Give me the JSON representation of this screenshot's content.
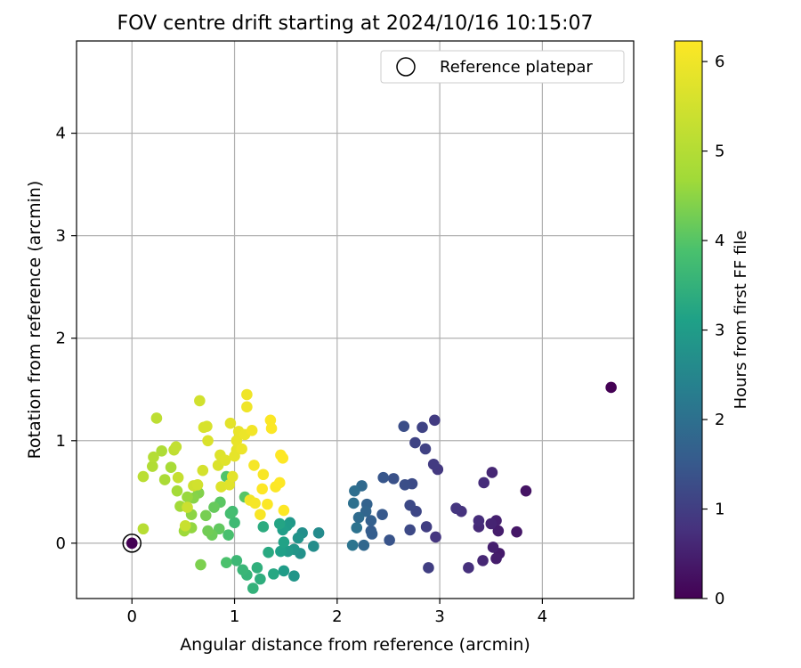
{
  "chart_data": {
    "type": "scatter",
    "title": "FOV centre drift starting at 2024/10/16 10:15:07",
    "xlabel": "Angular distance from reference (arcmin)",
    "ylabel": "Rotation from reference (arcmin)",
    "xlim": [
      -0.54,
      4.89
    ],
    "ylim": [
      -0.54,
      4.9
    ],
    "xticks": [
      "0",
      "1",
      "2",
      "3",
      "4"
    ],
    "yticks": [
      "0",
      "1",
      "2",
      "3",
      "4"
    ],
    "grid": true,
    "legend": {
      "position": "top-right",
      "label": "Reference platepar"
    },
    "reference_point": {
      "x": 0,
      "y": 0
    },
    "colorbar": {
      "label": "Hours from first FF file",
      "colormap": "viridis",
      "range": [
        0,
        6.23
      ],
      "ticks": [
        "0",
        "1",
        "2",
        "3",
        "4",
        "5",
        "6"
      ]
    },
    "points": [
      [
        4.67,
        1.52,
        0.0
      ],
      [
        3.84,
        0.51,
        0.3
      ],
      [
        3.75,
        0.11,
        0.35
      ],
      [
        3.58,
        -0.1,
        0.4
      ],
      [
        3.55,
        -0.15,
        0.45
      ],
      [
        3.57,
        0.12,
        0.45
      ],
      [
        3.52,
        -0.04,
        0.5
      ],
      [
        3.55,
        0.22,
        0.5
      ],
      [
        3.5,
        0.19,
        0.55
      ],
      [
        3.51,
        0.69,
        0.6
      ],
      [
        3.42,
        -0.17,
        0.6
      ],
      [
        3.38,
        0.16,
        0.65
      ],
      [
        3.38,
        0.22,
        0.7
      ],
      [
        3.43,
        0.59,
        0.7
      ],
      [
        3.28,
        -0.24,
        0.75
      ],
      [
        3.21,
        0.31,
        0.8
      ],
      [
        3.16,
        0.34,
        0.85
      ],
      [
        2.96,
        0.06,
        0.85
      ],
      [
        2.98,
        0.72,
        0.9
      ],
      [
        2.94,
        0.77,
        0.95
      ],
      [
        2.95,
        1.2,
        0.95
      ],
      [
        2.87,
        0.16,
        1.0
      ],
      [
        2.89,
        -0.24,
        1.0
      ],
      [
        2.86,
        0.92,
        1.05
      ],
      [
        2.83,
        1.13,
        1.1
      ],
      [
        2.76,
        0.98,
        1.1
      ],
      [
        2.77,
        0.31,
        1.15
      ],
      [
        2.71,
        0.37,
        1.2
      ],
      [
        2.71,
        0.13,
        1.2
      ],
      [
        2.73,
        0.58,
        1.25
      ],
      [
        2.66,
        0.57,
        1.3
      ],
      [
        2.65,
        1.14,
        1.3
      ],
      [
        2.55,
        0.63,
        1.35
      ],
      [
        2.51,
        0.03,
        1.4
      ],
      [
        2.45,
        0.64,
        1.45
      ],
      [
        2.44,
        0.28,
        1.5
      ],
      [
        2.33,
        0.12,
        1.55
      ],
      [
        2.34,
        0.09,
        1.6
      ],
      [
        2.33,
        0.22,
        1.65
      ],
      [
        2.29,
        0.38,
        1.7
      ],
      [
        2.28,
        0.31,
        1.75
      ],
      [
        2.26,
        -0.02,
        1.8
      ],
      [
        2.24,
        0.56,
        1.85
      ],
      [
        2.21,
        0.25,
        1.9
      ],
      [
        2.17,
        0.51,
        1.95
      ],
      [
        2.16,
        0.39,
        2.0
      ],
      [
        2.19,
        0.15,
        2.05
      ],
      [
        2.15,
        -0.02,
        2.1
      ],
      [
        1.82,
        0.1,
        2.6
      ],
      [
        1.77,
        -0.03,
        2.65
      ],
      [
        1.66,
        0.1,
        2.7
      ],
      [
        1.64,
        -0.1,
        2.75
      ],
      [
        1.62,
        0.05,
        2.8
      ],
      [
        1.58,
        -0.32,
        2.85
      ],
      [
        1.58,
        -0.06,
        2.85
      ],
      [
        1.54,
        0.2,
        2.9
      ],
      [
        1.52,
        -0.08,
        2.95
      ],
      [
        1.51,
        0.17,
        3.0
      ],
      [
        1.48,
        -0.27,
        3.0
      ],
      [
        1.47,
        0.13,
        3.05
      ],
      [
        1.45,
        -0.08,
        3.1
      ],
      [
        1.48,
        0.01,
        3.15
      ],
      [
        1.44,
        0.19,
        3.2
      ],
      [
        1.38,
        -0.3,
        3.25
      ],
      [
        1.33,
        -0.09,
        3.3
      ],
      [
        1.28,
        0.16,
        3.35
      ],
      [
        1.25,
        -0.35,
        3.4
      ],
      [
        1.22,
        -0.24,
        3.45
      ],
      [
        1.18,
        -0.44,
        3.5
      ],
      [
        1.12,
        -0.31,
        3.55
      ],
      [
        1.08,
        -0.26,
        3.6
      ],
      [
        1.02,
        -0.17,
        3.65
      ],
      [
        1.0,
        0.2,
        3.7
      ],
      [
        0.98,
        0.31,
        3.75
      ],
      [
        0.96,
        0.29,
        3.8
      ],
      [
        0.94,
        0.08,
        3.85
      ],
      [
        0.92,
        -0.19,
        3.9
      ],
      [
        0.92,
        0.65,
        3.95
      ],
      [
        1.1,
        0.45,
        4.0
      ],
      [
        0.86,
        0.4,
        4.05
      ],
      [
        0.85,
        0.14,
        4.1
      ],
      [
        0.8,
        0.35,
        4.15
      ],
      [
        0.78,
        0.08,
        4.2
      ],
      [
        0.74,
        0.12,
        4.25
      ],
      [
        0.72,
        0.27,
        4.3
      ],
      [
        0.67,
        -0.21,
        4.35
      ],
      [
        0.65,
        0.49,
        4.4
      ],
      [
        0.6,
        0.44,
        4.45
      ],
      [
        0.58,
        0.28,
        4.5
      ],
      [
        0.58,
        0.15,
        4.55
      ],
      [
        0.54,
        0.45,
        4.6
      ],
      [
        0.51,
        0.12,
        4.65
      ],
      [
        0.47,
        0.36,
        4.7
      ],
      [
        0.44,
        0.51,
        4.75
      ],
      [
        0.38,
        0.74,
        4.8
      ],
      [
        0.32,
        0.62,
        4.85
      ],
      [
        0.29,
        0.9,
        4.9
      ],
      [
        0.2,
        0.75,
        4.95
      ],
      [
        0.21,
        0.84,
        5.0
      ],
      [
        0.11,
        0.14,
        5.05
      ],
      [
        0.11,
        0.65,
        5.1
      ],
      [
        0.24,
        1.22,
        5.15
      ],
      [
        0.41,
        0.91,
        5.2
      ],
      [
        0.43,
        0.94,
        5.25
      ],
      [
        0.45,
        0.64,
        5.3
      ],
      [
        0.52,
        0.17,
        5.35
      ],
      [
        0.54,
        0.35,
        5.4
      ],
      [
        0.6,
        0.56,
        5.45
      ],
      [
        0.64,
        0.57,
        5.5
      ],
      [
        0.66,
        1.39,
        5.5
      ],
      [
        0.69,
        0.71,
        5.55
      ],
      [
        0.7,
        1.13,
        5.6
      ],
      [
        0.73,
        1.14,
        5.6
      ],
      [
        0.74,
        1.0,
        5.65
      ],
      [
        0.84,
        0.76,
        5.65
      ],
      [
        0.86,
        0.86,
        5.7
      ],
      [
        0.87,
        0.55,
        5.7
      ],
      [
        0.91,
        0.81,
        5.75
      ],
      [
        0.95,
        0.57,
        5.75
      ],
      [
        0.96,
        1.17,
        5.8
      ],
      [
        0.98,
        0.65,
        5.8
      ],
      [
        1.0,
        0.85,
        5.85
      ],
      [
        1.02,
        0.91,
        5.85
      ],
      [
        1.02,
        1.0,
        5.9
      ],
      [
        1.04,
        1.09,
        5.9
      ],
      [
        1.07,
        0.92,
        5.95
      ],
      [
        1.1,
        1.06,
        5.95
      ],
      [
        1.12,
        1.33,
        6.0
      ],
      [
        1.12,
        1.45,
        6.0
      ],
      [
        1.15,
        0.42,
        6.05
      ],
      [
        1.17,
        1.1,
        6.05
      ],
      [
        1.19,
        0.76,
        6.1
      ],
      [
        1.2,
        0.39,
        6.1
      ],
      [
        1.25,
        0.28,
        6.15
      ],
      [
        1.28,
        0.67,
        6.15
      ],
      [
        1.32,
        0.38,
        6.2
      ],
      [
        1.35,
        1.2,
        6.2
      ],
      [
        1.36,
        1.12,
        6.2
      ],
      [
        1.4,
        0.55,
        6.2
      ],
      [
        1.44,
        0.59,
        6.23
      ],
      [
        1.45,
        0.86,
        6.23
      ],
      [
        1.47,
        0.83,
        6.23
      ],
      [
        1.48,
        0.32,
        6.23
      ],
      [
        1.27,
        0.53,
        6.23
      ]
    ]
  }
}
